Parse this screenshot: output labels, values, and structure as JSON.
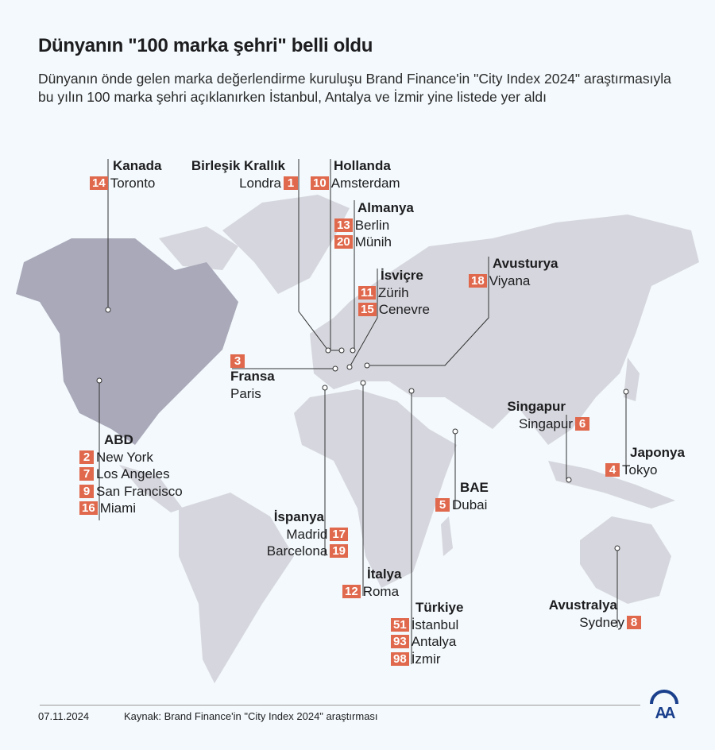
{
  "title": "Dünyanın \"100 marka şehri\" belli oldu",
  "subtitle": "Dünyanın önde gelen marka değerlendirme kuruluşu Brand Finance'in \"City Index 2024\" araştırmasıyla bu yılın 100 marka şehri açıklanırken İstanbul, Antalya ve İzmir yine listede yer aldı",
  "callouts": {
    "kanada": {
      "country": "Kanada",
      "cities": [
        {
          "rank": "14",
          "name": "Toronto"
        }
      ]
    },
    "uk": {
      "country": "Birleşik Krallık",
      "cities": [
        {
          "rank": "1",
          "name": "Londra"
        }
      ]
    },
    "hollanda": {
      "country": "Hollanda",
      "cities": [
        {
          "rank": "10",
          "name": "Amsterdam"
        }
      ]
    },
    "almanya": {
      "country": "Almanya",
      "cities": [
        {
          "rank": "13",
          "name": "Berlin"
        },
        {
          "rank": "20",
          "name": "Münih"
        }
      ]
    },
    "isvicre": {
      "country": "İsviçre",
      "cities": [
        {
          "rank": "11",
          "name": "Zürih"
        },
        {
          "rank": "15",
          "name": "Cenevre"
        }
      ]
    },
    "avusturya": {
      "country": "Avusturya",
      "cities": [
        {
          "rank": "18",
          "name": "Viyana"
        }
      ]
    },
    "fransa": {
      "country": "Fransa",
      "cities": [
        {
          "rank": "3",
          "name": "Paris"
        }
      ]
    },
    "abd": {
      "country": "ABD",
      "cities": [
        {
          "rank": "2",
          "name": "New York"
        },
        {
          "rank": "7",
          "name": "Los Angeles"
        },
        {
          "rank": "9",
          "name": "San Francisco"
        },
        {
          "rank": "16",
          "name": "Miami"
        }
      ]
    },
    "ispanya": {
      "country": "İspanya",
      "cities": [
        {
          "rank": "17",
          "name": "Madrid"
        },
        {
          "rank": "19",
          "name": "Barcelona"
        }
      ]
    },
    "italya": {
      "country": "İtalya",
      "cities": [
        {
          "rank": "12",
          "name": "Roma"
        }
      ]
    },
    "turkiye": {
      "country": "Türkiye",
      "cities": [
        {
          "rank": "51",
          "name": "İstanbul"
        },
        {
          "rank": "93",
          "name": "Antalya"
        },
        {
          "rank": "98",
          "name": "İzmir"
        }
      ]
    },
    "bae": {
      "country": "BAE",
      "cities": [
        {
          "rank": "5",
          "name": "Dubai"
        }
      ]
    },
    "singapur": {
      "country": "Singapur",
      "cities": [
        {
          "rank": "6",
          "name": "Singapur"
        }
      ]
    },
    "japonya": {
      "country": "Japonya",
      "cities": [
        {
          "rank": "4",
          "name": "Tokyo"
        }
      ]
    },
    "avustralya": {
      "country": "Avustralya",
      "cities": [
        {
          "rank": "8",
          "name": "Sydney"
        }
      ]
    }
  },
  "footer": {
    "date": "07.11.2024",
    "source": "Kaynak: Brand Finance'in \"City Index 2024\" araştırması",
    "logo": "AA"
  },
  "colors": {
    "badge": "#e0694d",
    "land": "#d6d7de",
    "highlight": "#a9a9b9",
    "background": "#f3f9fc"
  }
}
